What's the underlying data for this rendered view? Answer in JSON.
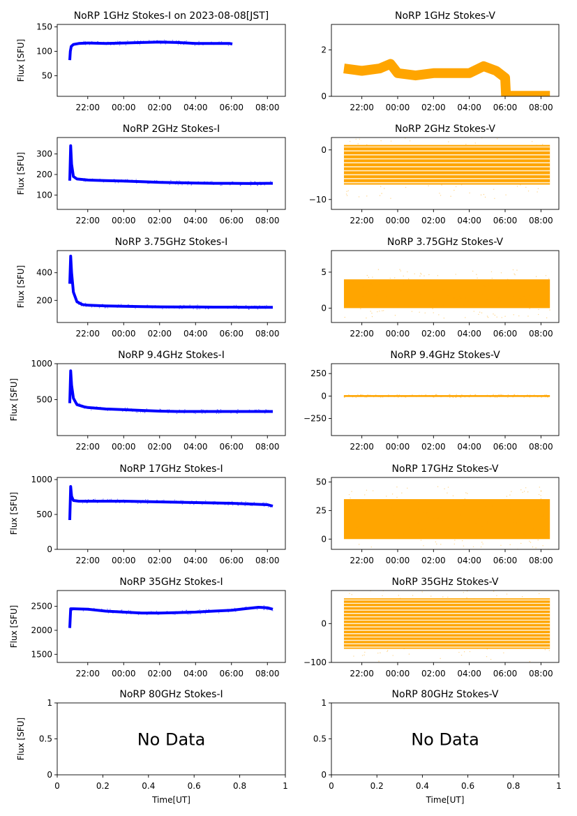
{
  "figure": {
    "date_label": "2023-08-08[JST]",
    "xlabel": "Time[UT]",
    "no_data_text": "No Data",
    "series_colors": {
      "I": "#0000ff",
      "V": "#ffa500"
    },
    "time_ticks": [
      "22:00",
      "00:00",
      "02:00",
      "04:00",
      "06:00",
      "08:00"
    ],
    "time_tick_hours": [
      22,
      24,
      26,
      28,
      30,
      32
    ]
  },
  "chart_data": [
    {
      "type": "scatter",
      "title": "NoRP 1GHz Stokes-I on 2023-08-08[JST]",
      "ylabel": "Flux [SFU]",
      "xlim_hours": [
        20.3,
        33.0
      ],
      "ylim": [
        8,
        155
      ],
      "yticks": [
        50,
        100,
        150
      ],
      "time_ticks": [
        "22:00",
        "00:00",
        "02:00",
        "04:00",
        "06:00",
        "08:00"
      ],
      "series": [
        {
          "name": "Stokes-I",
          "x_hours": [
            21.0,
            21.03,
            21.08,
            21.2,
            21.5,
            22.0,
            23.0,
            24.0,
            25.0,
            26.0,
            27.0,
            28.0,
            29.0,
            29.9,
            30.05
          ],
          "y": [
            82,
            100,
            110,
            114,
            116,
            117,
            116,
            117,
            118,
            119,
            118,
            116,
            116,
            116,
            115
          ]
        }
      ]
    },
    {
      "type": "scatter",
      "title": "NoRP 1GHz Stokes-V",
      "ylabel": "",
      "xlim_hours": [
        20.3,
        33.0
      ],
      "ylim": [
        0,
        3.1
      ],
      "yticks": [
        0,
        2
      ],
      "time_ticks": [
        "22:00",
        "00:00",
        "02:00",
        "04:00",
        "06:00",
        "08:00"
      ],
      "series": [
        {
          "name": "Stokes-V",
          "x_hours": [
            21.0,
            22.0,
            23.0,
            23.6,
            24.0,
            25.0,
            26.0,
            27.0,
            28.0,
            28.8,
            29.5,
            30.0,
            30.05,
            32.5
          ],
          "y": [
            1.2,
            1.1,
            1.2,
            1.4,
            1.0,
            0.9,
            1.0,
            1.0,
            1.0,
            1.3,
            1.1,
            0.8,
            0.02,
            0.02
          ]
        }
      ]
    },
    {
      "type": "scatter",
      "title": "NoRP 2GHz Stokes-I",
      "ylabel": "Flux [SFU]",
      "xlim_hours": [
        20.3,
        33.0
      ],
      "ylim": [
        30,
        380
      ],
      "yticks": [
        100,
        200,
        300
      ],
      "time_ticks": [
        "22:00",
        "00:00",
        "02:00",
        "04:00",
        "06:00",
        "08:00"
      ],
      "series": [
        {
          "name": "Stokes-I",
          "x_hours": [
            21.0,
            21.05,
            21.1,
            21.2,
            21.4,
            22.0,
            23.0,
            24.0,
            25.0,
            26.0,
            27.0,
            28.0,
            29.0,
            30.0,
            31.0,
            32.0,
            32.3
          ],
          "y": [
            170,
            340,
            250,
            190,
            178,
            173,
            170,
            168,
            165,
            162,
            160,
            158,
            157,
            157,
            156,
            157,
            157
          ]
        }
      ]
    },
    {
      "type": "scatter",
      "title": "NoRP 2GHz Stokes-V",
      "ylabel": "",
      "xlim_hours": [
        20.3,
        33.0
      ],
      "ylim": [
        -12,
        2.5
      ],
      "yticks": [
        -10,
        0
      ],
      "time_ticks": [
        "22:00",
        "00:00",
        "02:00",
        "04:00",
        "06:00",
        "08:00"
      ],
      "series": [
        {
          "name": "Stokes-V",
          "x_hours": [
            21.0,
            32.5
          ],
          "y_band": [
            -7,
            1
          ]
        }
      ]
    },
    {
      "type": "scatter",
      "title": "NoRP 3.75GHz Stokes-I",
      "ylabel": "Flux [SFU]",
      "xlim_hours": [
        20.3,
        33.0
      ],
      "ylim": [
        40,
        560
      ],
      "yticks": [
        200,
        400
      ],
      "time_ticks": [
        "22:00",
        "00:00",
        "02:00",
        "04:00",
        "06:00",
        "08:00"
      ],
      "series": [
        {
          "name": "Stokes-I",
          "x_hours": [
            21.0,
            21.05,
            21.1,
            21.2,
            21.4,
            21.7,
            22.0,
            23.0,
            24.0,
            25.0,
            26.0,
            27.0,
            28.0,
            29.0,
            30.0,
            31.0,
            32.0,
            32.3
          ],
          "y": [
            320,
            520,
            400,
            260,
            190,
            170,
            165,
            160,
            157,
            155,
            153,
            152,
            152,
            151,
            151,
            150,
            150,
            150
          ]
        }
      ]
    },
    {
      "type": "scatter",
      "title": "NoRP 3.75GHz Stokes-V",
      "ylabel": "",
      "xlim_hours": [
        20.3,
        33.0
      ],
      "ylim": [
        -2,
        8
      ],
      "yticks": [
        0,
        5
      ],
      "time_ticks": [
        "22:00",
        "00:00",
        "02:00",
        "04:00",
        "06:00",
        "08:00"
      ],
      "series": [
        {
          "name": "Stokes-V",
          "x_hours": [
            21.0,
            32.5
          ],
          "y_band": [
            0,
            4
          ]
        }
      ]
    },
    {
      "type": "scatter",
      "title": "NoRP 9.4GHz Stokes-I",
      "ylabel": "Flux [SFU]",
      "xlim_hours": [
        20.3,
        33.0
      ],
      "ylim": [
        0,
        1000
      ],
      "yticks": [
        500,
        1000
      ],
      "time_ticks": [
        "22:00",
        "00:00",
        "02:00",
        "04:00",
        "06:00",
        "08:00"
      ],
      "series": [
        {
          "name": "Stokes-I",
          "x_hours": [
            21.0,
            21.05,
            21.1,
            21.2,
            21.4,
            21.8,
            22.0,
            23.0,
            24.0,
            25.0,
            26.0,
            27.0,
            28.0,
            29.0,
            30.0,
            31.0,
            32.0,
            32.3
          ],
          "y": [
            450,
            900,
            700,
            520,
            430,
            400,
            390,
            370,
            360,
            350,
            340,
            335,
            335,
            335,
            335,
            335,
            335,
            335
          ]
        }
      ]
    },
    {
      "type": "scatter",
      "title": "NoRP 9.4GHz Stokes-V",
      "ylabel": "",
      "xlim_hours": [
        20.3,
        33.0
      ],
      "ylim": [
        -440,
        360
      ],
      "yticks": [
        -250,
        0,
        250
      ],
      "time_ticks": [
        "22:00",
        "00:00",
        "02:00",
        "04:00",
        "06:00",
        "08:00"
      ],
      "series": [
        {
          "name": "Stokes-V",
          "x_hours": [
            21.0,
            32.5
          ],
          "y_band": [
            -10,
            10
          ]
        }
      ]
    },
    {
      "type": "scatter",
      "title": "NoRP 17GHz Stokes-I",
      "ylabel": "Flux [SFU]",
      "xlim_hours": [
        20.3,
        33.0
      ],
      "ylim": [
        0,
        1030
      ],
      "yticks": [
        0,
        500,
        1000
      ],
      "time_ticks": [
        "22:00",
        "00:00",
        "02:00",
        "04:00",
        "06:00",
        "08:00"
      ],
      "series": [
        {
          "name": "Stokes-I",
          "x_hours": [
            21.0,
            21.05,
            21.1,
            21.2,
            21.5,
            22.0,
            23.0,
            24.0,
            25.0,
            26.0,
            27.0,
            28.0,
            29.0,
            30.0,
            31.0,
            32.0,
            32.3
          ],
          "y": [
            420,
            900,
            760,
            700,
            690,
            690,
            690,
            690,
            685,
            680,
            675,
            670,
            665,
            660,
            650,
            640,
            620
          ]
        }
      ]
    },
    {
      "type": "scatter",
      "title": "NoRP 17GHz Stokes-V",
      "ylabel": "",
      "xlim_hours": [
        20.3,
        33.0
      ],
      "ylim": [
        -9,
        54
      ],
      "yticks": [
        0,
        25,
        50
      ],
      "time_ticks": [
        "22:00",
        "00:00",
        "02:00",
        "04:00",
        "06:00",
        "08:00"
      ],
      "series": [
        {
          "name": "Stokes-V",
          "x_hours": [
            21.0,
            32.5
          ],
          "y_band": [
            0,
            35
          ]
        }
      ]
    },
    {
      "type": "scatter",
      "title": "NoRP 35GHz Stokes-I",
      "ylabel": "Flux [SFU]",
      "xlim_hours": [
        20.3,
        33.0
      ],
      "ylim": [
        1330,
        2830
      ],
      "yticks": [
        1500,
        2000,
        2500
      ],
      "time_ticks": [
        "22:00",
        "00:00",
        "02:00",
        "04:00",
        "06:00",
        "08:00"
      ],
      "series": [
        {
          "name": "Stokes-I",
          "x_hours": [
            21.0,
            21.05,
            21.2,
            22.0,
            23.0,
            24.0,
            25.0,
            26.0,
            27.0,
            28.0,
            29.0,
            30.0,
            31.0,
            31.5,
            32.0,
            32.3
          ],
          "y": [
            2050,
            2450,
            2450,
            2440,
            2400,
            2380,
            2360,
            2360,
            2370,
            2380,
            2400,
            2420,
            2460,
            2480,
            2470,
            2440
          ]
        }
      ]
    },
    {
      "type": "scatter",
      "title": "NoRP 35GHz Stokes-V",
      "ylabel": "",
      "xlim_hours": [
        20.3,
        33.0
      ],
      "ylim": [
        -100,
        85
      ],
      "yticks": [
        -100,
        0
      ],
      "time_ticks": [
        "22:00",
        "00:00",
        "02:00",
        "04:00",
        "06:00",
        "08:00"
      ],
      "series": [
        {
          "name": "Stokes-V",
          "x_hours": [
            21.0,
            32.5
          ],
          "y_band": [
            -65,
            65
          ]
        }
      ]
    },
    {
      "type": "scatter",
      "title": "NoRP 80GHz Stokes-I",
      "ylabel": "Flux [SFU]",
      "xlabel": "Time[UT]",
      "xlim": [
        0,
        1
      ],
      "ylim": [
        0,
        1
      ],
      "xticks": [
        0,
        0.2,
        0.4,
        0.6,
        0.8,
        1
      ],
      "yticks": [
        0,
        0.5,
        1
      ],
      "annotation": "No Data",
      "series": []
    },
    {
      "type": "scatter",
      "title": "NoRP 80GHz Stokes-V",
      "ylabel": "",
      "xlabel": "Time[UT]",
      "xlim": [
        0,
        1
      ],
      "ylim": [
        0,
        1
      ],
      "xticks": [
        0,
        0.2,
        0.4,
        0.6,
        0.8,
        1
      ],
      "yticks": [
        0,
        0.5,
        1
      ],
      "annotation": "No Data",
      "series": []
    }
  ]
}
